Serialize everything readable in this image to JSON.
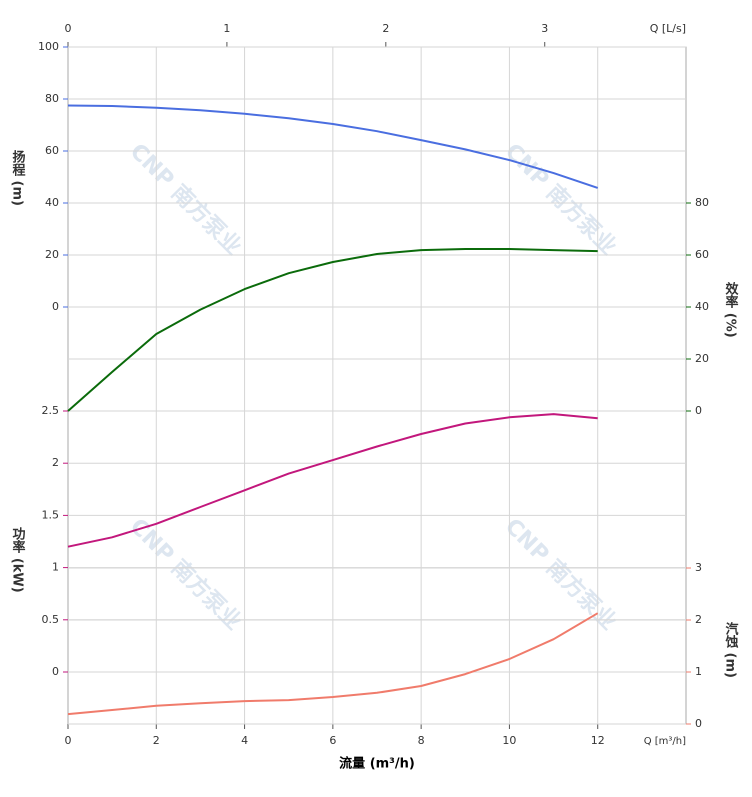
{
  "chart_data": {
    "type": "line",
    "x": [
      0,
      1,
      2,
      3,
      4,
      5,
      6,
      7,
      8,
      9,
      10,
      11,
      12
    ],
    "xlim": [
      0,
      14
    ],
    "xticks": [
      0,
      2,
      4,
      6,
      8,
      10,
      12
    ],
    "x_unit": "Q [m³/h]",
    "x_label": "流量 (m³/h)",
    "x2lim": [
      0,
      3.889
    ],
    "x2ticks": [
      0,
      1,
      2,
      3
    ],
    "x2_unit": "Q [L/s]",
    "y_label": "扬程 (m)",
    "ylim": [
      0,
      100
    ],
    "yticks": [
      0,
      20,
      40,
      60,
      80,
      100
    ],
    "y2_label": "效率 (%)",
    "y2lim": [
      0,
      80
    ],
    "y2ticks": [
      0,
      20,
      40,
      60,
      80
    ],
    "y3_label": "功率 (kW)",
    "y3lim": [
      0,
      2.5
    ],
    "y3ticks": [
      0,
      0.5,
      1,
      1.5,
      2,
      2.5
    ],
    "y4_label": "汽蚀 (m)",
    "y4lim": [
      0,
      3
    ],
    "y4ticks": [
      0,
      1,
      2,
      3
    ],
    "grid": true,
    "watermark": "CNP 南方泵业",
    "series": [
      {
        "axis": "y",
        "color": "#4a6ee0",
        "values": [
          77.5,
          77.3,
          76.6,
          75.7,
          74.3,
          72.6,
          70.4,
          67.6,
          64.2,
          60.6,
          56.5,
          51.5,
          45.8
        ]
      },
      {
        "axis": "y2",
        "color": "#0b6b0b",
        "values": [
          0,
          15,
          29.6,
          39,
          46.9,
          53,
          57.3,
          60.4,
          61.9,
          62.3,
          62.3,
          61.9,
          61.5
        ]
      },
      {
        "axis": "y3",
        "color": "#c2177c",
        "values": [
          1.2,
          1.29,
          1.42,
          1.58,
          1.74,
          1.9,
          2.03,
          2.16,
          2.28,
          2.38,
          2.44,
          2.47,
          2.43
        ]
      },
      {
        "axis": "y4",
        "color": "#f07b6b",
        "values": [
          0.19,
          0.27,
          0.35,
          0.4,
          0.44,
          0.46,
          0.52,
          0.6,
          0.73,
          0.96,
          1.25,
          1.63,
          2.13
        ]
      }
    ]
  }
}
